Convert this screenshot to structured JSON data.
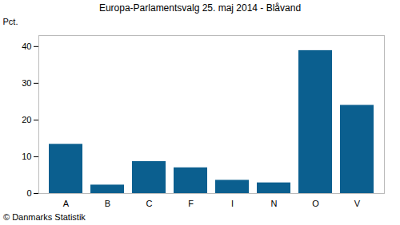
{
  "chart_data": {
    "type": "bar",
    "title": "Europa-Parlamentsvalg 25. maj 2014 - Blåvand",
    "y_label": "Pct.",
    "caption": "© Danmarks Statistik",
    "categories": [
      "A",
      "B",
      "C",
      "F",
      "I",
      "N",
      "O",
      "V"
    ],
    "values": [
      13.4,
      2.3,
      8.7,
      7.0,
      3.6,
      2.9,
      38.9,
      24.0
    ],
    "color": "#0b5f8f",
    "ylim": [
      0,
      43
    ],
    "yticks": [
      0,
      10,
      20,
      30,
      40
    ],
    "grid": false
  }
}
